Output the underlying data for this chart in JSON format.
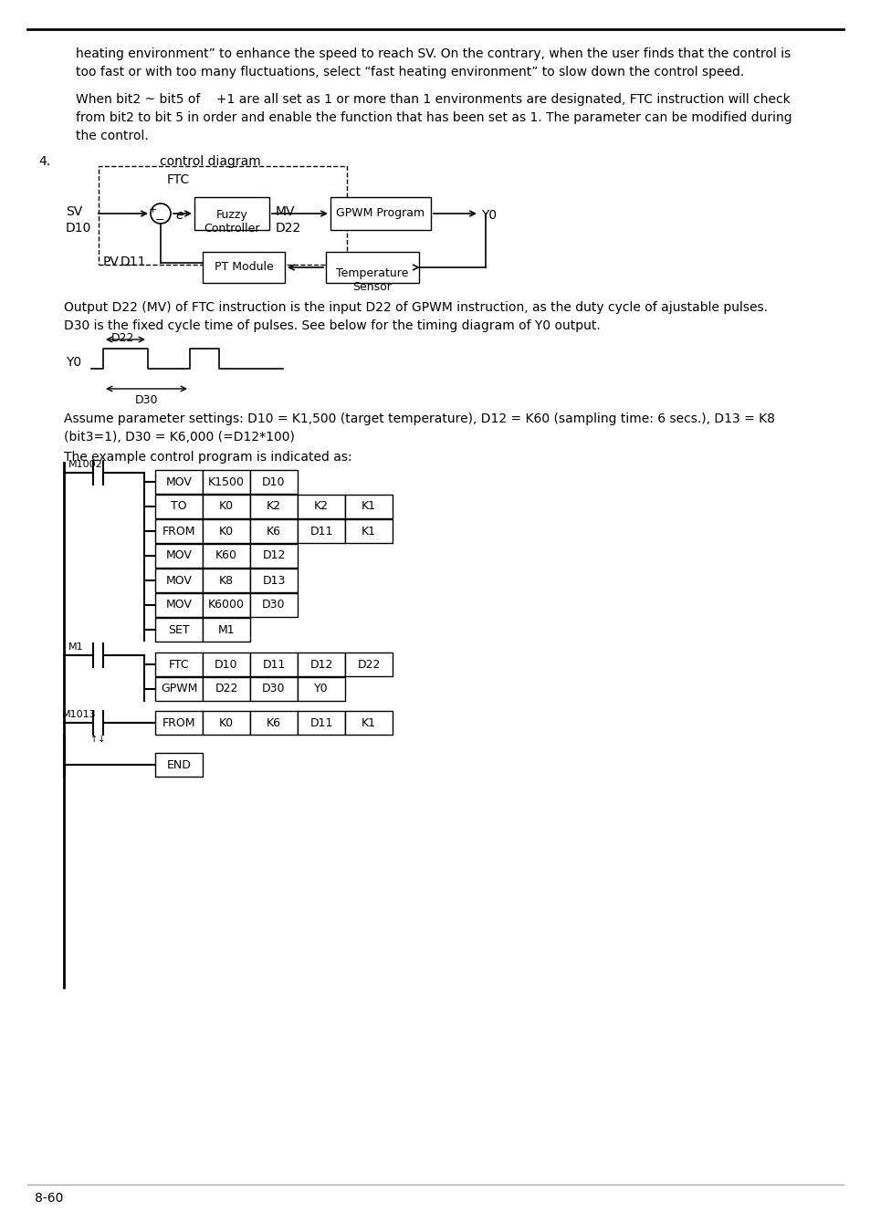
{
  "bg_color": "#ffffff",
  "text_color": "#000000",
  "page_number": "8-60",
  "paragraph1_line1": "heating environment” to enhance the speed to reach SV. On the contrary, when the user finds that the control is",
  "paragraph1_line2": "too fast or with too many fluctuations, select “fast heating environment” to slow down the control speed.",
  "paragraph2_line1": "When bit2 ~ bit5 of    +1 are all set as 1 or more than 1 environments are designated, FTC instruction will check",
  "paragraph2_line2": "from bit2 to bit 5 in order and enable the function that has been set as 1. The parameter can be modified during",
  "paragraph2_line3": "the control.",
  "section4_label": "4.",
  "section4_title": "control diagram",
  "ftc_label": "FTC",
  "output_para1": "Output D22 (MV) of FTC instruction is the input D22 of GPWM instruction, as the duty cycle of ajustable pulses.",
  "output_para2": "D30 is the fixed cycle time of pulses. See below for the timing diagram of Y0 output.",
  "assume_para1": "Assume parameter settings: D10 = K1,500 (target temperature), D12 = K60 (sampling time: 6 secs.), D13 = K8",
  "assume_para2": "(bit3=1), D30 = K6,000 (=D12*100)",
  "example_text": "The example control program is indicated as:",
  "m1002_rows": [
    [
      "MOV",
      "K1500",
      "D10"
    ],
    [
      "TO",
      "K0",
      "K2",
      "K2",
      "K1"
    ],
    [
      "FROM",
      "K0",
      "K6",
      "D11",
      "K1"
    ],
    [
      "MOV",
      "K60",
      "D12"
    ],
    [
      "MOV",
      "K8",
      "D13"
    ],
    [
      "MOV",
      "K6000",
      "D30"
    ],
    [
      "SET",
      "M1"
    ]
  ],
  "m1_rows": [
    [
      "FTC",
      "D10",
      "D11",
      "D12",
      "D22"
    ],
    [
      "GPWM",
      "D22",
      "D30",
      "Y0"
    ]
  ],
  "m1013_rows": [
    [
      "FROM",
      "K0",
      "K6",
      "D11",
      "K1"
    ]
  ],
  "end_rows": [
    [
      "END"
    ]
  ]
}
